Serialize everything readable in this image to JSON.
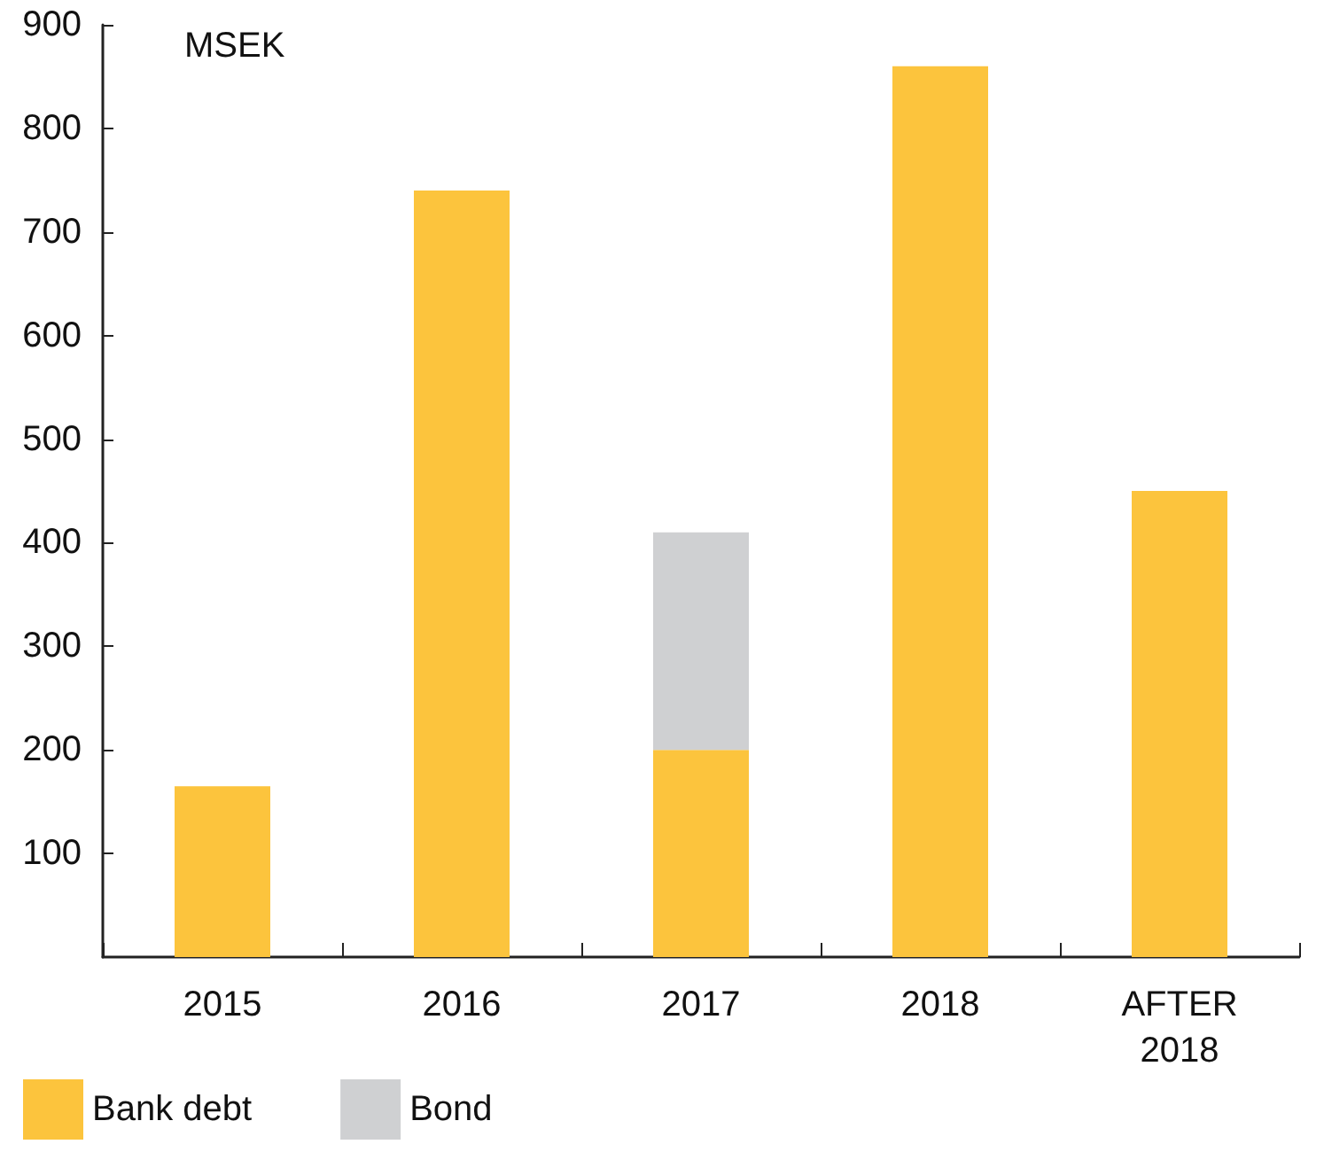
{
  "chart_data": {
    "type": "bar",
    "ylabel": "MSEK",
    "categories": [
      "2015",
      "2016",
      "2017",
      "2018",
      "AFTER\n2018"
    ],
    "stacked": true,
    "series": [
      {
        "name": "Bank debt",
        "color": "#fcc43d",
        "values": [
          165,
          740,
          200,
          860,
          450
        ]
      },
      {
        "name": "Bond",
        "color": "#cfd0d2",
        "values": [
          null,
          null,
          210,
          null,
          null
        ]
      }
    ],
    "ylim": [
      0,
      900
    ],
    "yticks": [
      100,
      200,
      300,
      400,
      500,
      600,
      700,
      800,
      900
    ],
    "grid": false,
    "legend": "bottom left"
  }
}
